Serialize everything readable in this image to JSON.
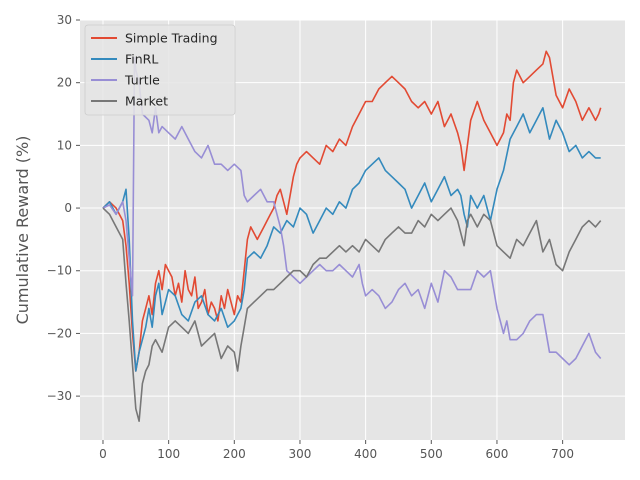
{
  "chart_data": {
    "type": "line",
    "xlabel": "",
    "ylabel": "Cumulative Reward (%)",
    "xlim": [
      -35,
      795
    ],
    "ylim": [
      -37,
      30
    ],
    "xticks": [
      0,
      100,
      200,
      300,
      400,
      500,
      600,
      700
    ],
    "yticks": [
      -30,
      -20,
      -10,
      0,
      10,
      20,
      30
    ],
    "grid": true,
    "legend": "top-left",
    "series": [
      {
        "name": "Simple Trading",
        "color": "#E24A33",
        "x": [
          0,
          10,
          20,
          30,
          35,
          40,
          45,
          50,
          55,
          60,
          65,
          70,
          75,
          80,
          85,
          90,
          95,
          100,
          105,
          110,
          115,
          120,
          125,
          130,
          135,
          140,
          145,
          150,
          155,
          160,
          165,
          170,
          175,
          180,
          185,
          190,
          195,
          200,
          205,
          210,
          215,
          220,
          225,
          230,
          235,
          240,
          245,
          250,
          255,
          260,
          265,
          270,
          275,
          280,
          285,
          290,
          295,
          300,
          310,
          320,
          330,
          340,
          350,
          360,
          370,
          380,
          390,
          400,
          410,
          420,
          430,
          440,
          450,
          460,
          470,
          480,
          490,
          500,
          510,
          520,
          530,
          540,
          545,
          550,
          555,
          560,
          570,
          580,
          590,
          600,
          610,
          615,
          620,
          625,
          630,
          640,
          650,
          660,
          670,
          675,
          680,
          690,
          700,
          710,
          720,
          730,
          740,
          750,
          755,
          758
        ],
        "values": [
          0,
          1,
          0,
          -2,
          -6,
          -12,
          -20,
          -26,
          -23,
          -18,
          -16,
          -14,
          -17,
          -12,
          -10,
          -13,
          -9,
          -10,
          -11,
          -14,
          -12,
          -15,
          -10,
          -13,
          -14,
          -11,
          -16,
          -15,
          -13,
          -17,
          -15,
          -16,
          -18,
          -14,
          -16,
          -13,
          -15,
          -17,
          -14,
          -15,
          -10,
          -5,
          -3,
          -4,
          -5,
          -4,
          -3,
          -2,
          -1,
          0,
          2,
          3,
          1,
          -1,
          2,
          5,
          7,
          8,
          9,
          8,
          7,
          10,
          9,
          11,
          10,
          13,
          15,
          17,
          17,
          19,
          20,
          21,
          20,
          19,
          17,
          16,
          17,
          15,
          17,
          13,
          15,
          12,
          10,
          6,
          10,
          14,
          17,
          14,
          12,
          10,
          12,
          15,
          14,
          20,
          22,
          20,
          21,
          22,
          23,
          25,
          24,
          18,
          16,
          19,
          17,
          14,
          16,
          14,
          15,
          16
        ]
      },
      {
        "name": "FinRL",
        "color": "#348ABD",
        "x": [
          0,
          10,
          20,
          30,
          35,
          40,
          45,
          50,
          55,
          60,
          65,
          70,
          75,
          80,
          85,
          90,
          95,
          100,
          110,
          120,
          130,
          140,
          150,
          160,
          170,
          180,
          190,
          200,
          210,
          215,
          220,
          230,
          240,
          250,
          260,
          270,
          280,
          290,
          300,
          310,
          320,
          330,
          340,
          350,
          360,
          370,
          380,
          390,
          400,
          410,
          420,
          430,
          440,
          450,
          460,
          470,
          480,
          490,
          500,
          510,
          520,
          530,
          540,
          545,
          550,
          555,
          560,
          570,
          580,
          590,
          600,
          610,
          620,
          630,
          640,
          650,
          660,
          670,
          680,
          690,
          700,
          710,
          720,
          730,
          740,
          750,
          758
        ],
        "values": [
          0,
          1,
          -1,
          1,
          3,
          -5,
          -18,
          -26,
          -23,
          -21,
          -19,
          -16,
          -19,
          -14,
          -12,
          -17,
          -15,
          -13,
          -14,
          -17,
          -18,
          -15,
          -14,
          -17,
          -18,
          -16,
          -19,
          -18,
          -16,
          -13,
          -8,
          -7,
          -8,
          -6,
          -3,
          -4,
          -2,
          -3,
          0,
          -1,
          -4,
          -2,
          0,
          -1,
          1,
          0,
          3,
          4,
          6,
          7,
          8,
          6,
          5,
          4,
          3,
          0,
          2,
          4,
          1,
          3,
          5,
          2,
          3,
          2,
          -1,
          -3,
          2,
          0,
          2,
          -2,
          3,
          6,
          11,
          13,
          15,
          12,
          14,
          16,
          11,
          14,
          12,
          9,
          10,
          8,
          9,
          8,
          8
        ]
      },
      {
        "name": "Turtle",
        "color": "#988ED5",
        "x": [
          0,
          10,
          20,
          30,
          35,
          40,
          45,
          48,
          50,
          55,
          60,
          70,
          75,
          80,
          85,
          90,
          100,
          110,
          120,
          130,
          140,
          150,
          160,
          170,
          180,
          190,
          200,
          210,
          215,
          220,
          230,
          240,
          250,
          260,
          270,
          275,
          280,
          290,
          300,
          310,
          320,
          330,
          340,
          350,
          360,
          370,
          380,
          390,
          395,
          400,
          410,
          420,
          430,
          440,
          450,
          460,
          470,
          480,
          490,
          500,
          510,
          520,
          530,
          540,
          550,
          560,
          570,
          580,
          590,
          600,
          610,
          615,
          620,
          630,
          640,
          650,
          660,
          670,
          680,
          690,
          700,
          710,
          720,
          730,
          740,
          750,
          758
        ],
        "values": [
          0,
          0.5,
          -1,
          1,
          -2,
          -8,
          -14,
          24,
          22,
          20,
          15,
          14,
          12,
          16,
          12,
          13,
          12,
          11,
          13,
          11,
          9,
          8,
          10,
          7,
          7,
          6,
          7,
          6,
          2,
          1,
          2,
          3,
          1,
          1,
          -3,
          -6,
          -10,
          -11,
          -12,
          -11,
          -10,
          -9,
          -10,
          -10,
          -9,
          -10,
          -11,
          -9,
          -12,
          -14,
          -13,
          -14,
          -16,
          -15,
          -13,
          -12,
          -14,
          -13,
          -16,
          -12,
          -15,
          -10,
          -11,
          -13,
          -13,
          -13,
          -10,
          -11,
          -10,
          -16,
          -20,
          -18,
          -21,
          -21,
          -20,
          -18,
          -17,
          -17,
          -23,
          -23,
          -24,
          -25,
          -24,
          -22,
          -20,
          -23,
          -24
        ]
      },
      {
        "name": "Market",
        "color": "#777777",
        "x": [
          0,
          10,
          20,
          30,
          35,
          40,
          45,
          50,
          55,
          60,
          65,
          70,
          75,
          80,
          90,
          100,
          110,
          120,
          130,
          140,
          150,
          160,
          170,
          180,
          190,
          200,
          205,
          210,
          215,
          220,
          230,
          240,
          250,
          260,
          270,
          280,
          290,
          300,
          310,
          320,
          330,
          340,
          350,
          360,
          370,
          380,
          390,
          400,
          410,
          420,
          430,
          440,
          450,
          460,
          470,
          480,
          490,
          500,
          510,
          520,
          530,
          540,
          545,
          550,
          555,
          560,
          570,
          580,
          590,
          600,
          610,
          620,
          630,
          640,
          650,
          660,
          670,
          680,
          690,
          700,
          710,
          720,
          730,
          740,
          750,
          758
        ],
        "values": [
          0,
          -1,
          -3,
          -5,
          -12,
          -18,
          -25,
          -32,
          -34,
          -28,
          -26,
          -25,
          -22,
          -21,
          -23,
          -19,
          -18,
          -19,
          -20,
          -18,
          -22,
          -21,
          -20,
          -24,
          -22,
          -23,
          -26,
          -22,
          -19,
          -16,
          -15,
          -14,
          -13,
          -13,
          -12,
          -11,
          -10,
          -10,
          -11,
          -9,
          -8,
          -8,
          -7,
          -6,
          -7,
          -6,
          -7,
          -5,
          -6,
          -7,
          -5,
          -4,
          -3,
          -4,
          -4,
          -2,
          -3,
          -1,
          -2,
          -1,
          0,
          -2,
          -4,
          -6,
          -2,
          -1,
          -3,
          -1,
          -2,
          -6,
          -7,
          -8,
          -5,
          -6,
          -4,
          -2,
          -7,
          -5,
          -9,
          -10,
          -7,
          -5,
          -3,
          -2,
          -3,
          -2
        ]
      }
    ]
  }
}
